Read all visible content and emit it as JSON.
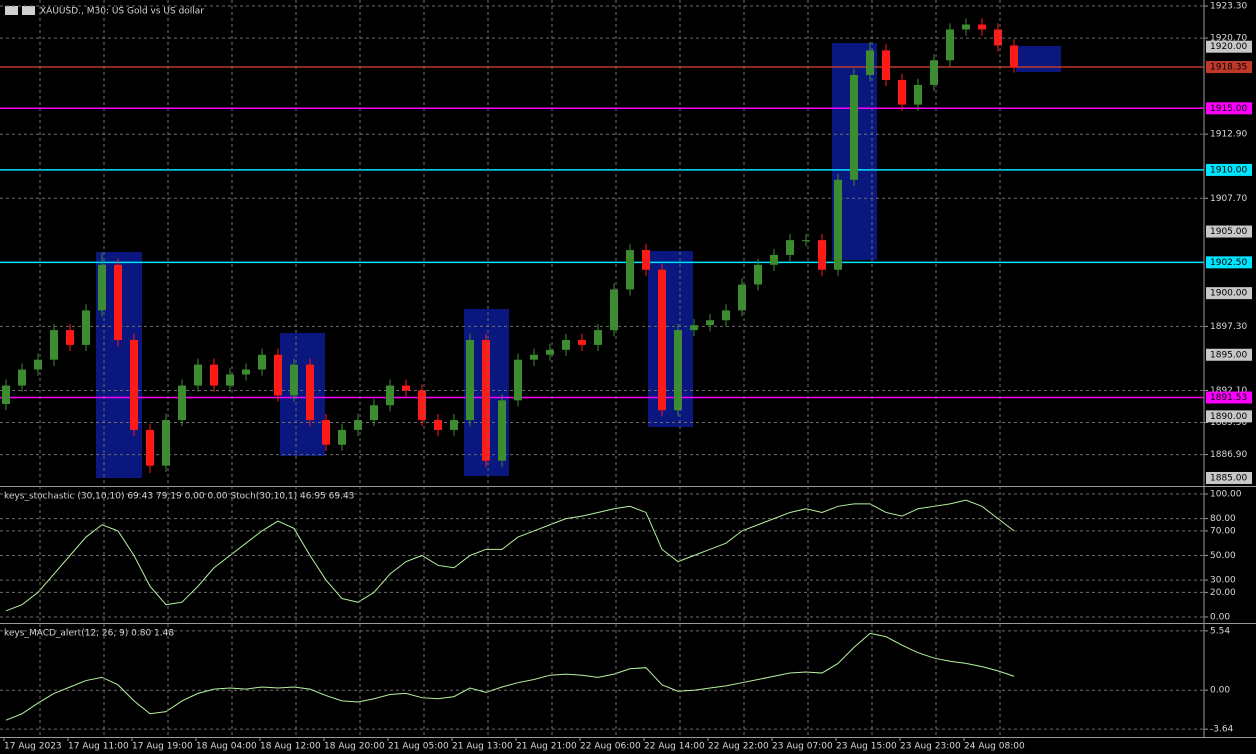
{
  "chart_data": [
    {
      "type": "candlestick",
      "title": "XAUUSD., M30:  US Gold vs US dollar",
      "categories": [
        "17 Aug 2023",
        null,
        null,
        null,
        "17 Aug 11:00",
        null,
        null,
        null,
        "17 Aug 19:00",
        null,
        null,
        null,
        "18 Aug 04:00",
        null,
        null,
        null,
        "18 Aug 12:00",
        null,
        null,
        null,
        "18 Aug 20:00",
        null,
        null,
        null,
        "21 Aug 05:00",
        null,
        null,
        null,
        "21 Aug 13:00",
        null,
        null,
        null,
        "21 Aug 21:00",
        null,
        null,
        null,
        "22 Aug 06:00",
        null,
        null,
        null,
        "22 Aug 14:00",
        null,
        null,
        null,
        "22 Aug 22:00",
        null,
        null,
        null,
        "23 Aug 07:00",
        null,
        null,
        null,
        "23 Aug 15:00",
        null,
        null,
        null,
        "23 Aug 23:00",
        null,
        null,
        null,
        "24 Aug 08:00",
        null,
        null,
        null
      ],
      "open": [
        1891.0,
        1892.5,
        1893.8,
        1894.6,
        1897.0,
        1895.8,
        1898.6,
        1902.3,
        1896.2,
        1888.9,
        1886.0,
        1889.7,
        1892.5,
        1894.2,
        1892.5,
        1893.4,
        1893.8,
        1895.0,
        1891.7,
        1894.2,
        1889.7,
        1887.7,
        1888.9,
        1889.7,
        1890.9,
        1892.5,
        1892.1,
        1889.7,
        1888.9,
        1889.7,
        1896.2,
        1886.4,
        1891.3,
        1894.6,
        1895.0,
        1895.4,
        1896.2,
        1895.8,
        1897.0,
        1900.3,
        1903.5,
        1901.9,
        1890.5,
        1897.0,
        1897.4,
        1897.8,
        1898.6,
        1900.7,
        1902.3,
        1903.1,
        1904.3,
        1904.3,
        1901.9,
        1909.2,
        1917.7,
        1919.7,
        1917.3,
        1915.3,
        1916.9,
        1918.9,
        1921.4,
        1921.8,
        1921.4,
        1920.1
      ],
      "high": [
        1893.0,
        1894.3,
        1895.1,
        1897.5,
        1897.5,
        1899.1,
        1903.3,
        1902.8,
        1896.7,
        1889.4,
        1890.2,
        1893.0,
        1894.7,
        1894.7,
        1893.9,
        1894.3,
        1895.5,
        1895.5,
        1894.7,
        1894.7,
        1890.2,
        1889.4,
        1890.2,
        1891.4,
        1893.0,
        1893.0,
        1892.6,
        1890.2,
        1890.2,
        1896.7,
        1896.7,
        1891.8,
        1895.1,
        1895.5,
        1895.9,
        1896.7,
        1896.7,
        1897.5,
        1900.8,
        1904.0,
        1904.0,
        1902.4,
        1897.5,
        1897.9,
        1898.3,
        1899.1,
        1901.2,
        1902.8,
        1903.6,
        1904.8,
        1904.8,
        1904.8,
        1909.7,
        1918.2,
        1920.4,
        1920.2,
        1917.8,
        1917.4,
        1919.4,
        1921.9,
        1922.3,
        1922.3,
        1921.9,
        1920.6
      ],
      "low": [
        1890.5,
        1892.0,
        1893.3,
        1894.1,
        1895.3,
        1895.3,
        1898.1,
        1895.7,
        1888.4,
        1885.4,
        1885.5,
        1889.2,
        1892.0,
        1892.0,
        1892.0,
        1892.9,
        1893.3,
        1891.2,
        1891.2,
        1889.2,
        1887.2,
        1887.2,
        1888.4,
        1889.2,
        1890.4,
        1891.6,
        1889.2,
        1888.4,
        1888.4,
        1889.2,
        1885.9,
        1885.9,
        1890.8,
        1894.1,
        1894.5,
        1894.9,
        1895.3,
        1895.3,
        1896.5,
        1899.8,
        1901.4,
        1890.0,
        1890.0,
        1896.5,
        1896.9,
        1897.3,
        1898.1,
        1900.2,
        1901.8,
        1902.6,
        1903.8,
        1901.4,
        1901.4,
        1908.7,
        1917.2,
        1916.8,
        1914.8,
        1914.8,
        1916.4,
        1918.4,
        1920.9,
        1920.9,
        1919.6,
        1917.9
      ],
      "close": [
        1892.5,
        1893.8,
        1894.6,
        1897.0,
        1895.8,
        1898.6,
        1902.3,
        1896.2,
        1888.9,
        1886.0,
        1889.7,
        1892.5,
        1894.2,
        1892.5,
        1893.4,
        1893.8,
        1895.0,
        1891.7,
        1894.2,
        1889.7,
        1887.7,
        1888.9,
        1889.7,
        1890.9,
        1892.5,
        1892.1,
        1889.7,
        1888.9,
        1889.7,
        1896.2,
        1886.4,
        1891.3,
        1894.6,
        1895.0,
        1895.4,
        1896.2,
        1895.8,
        1897.0,
        1900.3,
        1903.5,
        1901.9,
        1890.5,
        1897.0,
        1897.4,
        1897.8,
        1898.6,
        1900.7,
        1902.3,
        1903.1,
        1904.3,
        1904.3,
        1901.9,
        1909.2,
        1917.7,
        1919.7,
        1917.3,
        1915.3,
        1916.9,
        1918.9,
        1921.4,
        1921.8,
        1921.4,
        1920.1,
        1918.35
      ],
      "up_color": "#3c8d2f",
      "down_color": "#ff1a1a",
      "ylim": [
        1884.43,
        1923.79
      ],
      "yticks": [
        {
          "value": 1923.3,
          "label": "1923.30"
        },
        {
          "value": 1920.7,
          "label": "1920.70"
        },
        {
          "value": 1912.9,
          "label": "1912.90"
        },
        {
          "value": 1907.7,
          "label": "1907.70"
        },
        {
          "value": 1897.3,
          "label": "1897.30"
        },
        {
          "value": 1892.1,
          "label": "1892.10"
        },
        {
          "value": 1889.5,
          "label": "1889.50"
        },
        {
          "value": 1886.9,
          "label": "1886.90"
        }
      ],
      "levels": [
        {
          "value": 1918.35,
          "label": "1918.35",
          "color": "#c0392b"
        },
        {
          "value": 1915.0,
          "label": "1915.00",
          "color": "#ff00ff"
        },
        {
          "value": 1910.0,
          "label": "1910.00",
          "color": "#00e5ff"
        },
        {
          "value": 1902.5,
          "label": "1902.50",
          "color": "#00e5ff"
        },
        {
          "value": 1891.53,
          "label": "1891.53",
          "color": "#ff00ff"
        }
      ],
      "price_labels": [
        {
          "value": 1920.0,
          "label": "1920.00"
        },
        {
          "value": 1905.0,
          "label": "1905.00"
        },
        {
          "value": 1900.0,
          "label": "1900.00"
        },
        {
          "value": 1895.0,
          "label": "1895.00"
        },
        {
          "value": 1890.0,
          "label": "1890.00"
        },
        {
          "value": 1885.0,
          "label": "1885.00"
        }
      ],
      "grid": true
    },
    {
      "type": "line",
      "title": "keys_stochastic (30,10,10) 69.43 79.19 0.00 0.00 Stoch(30,10,1) 46.95 69.43",
      "values": [
        5,
        10,
        20,
        35,
        50,
        65,
        75,
        70,
        50,
        25,
        10,
        12,
        25,
        40,
        50,
        60,
        70,
        78,
        72,
        50,
        30,
        15,
        12,
        20,
        35,
        45,
        50,
        42,
        40,
        50,
        55,
        55,
        65,
        70,
        75,
        80,
        82,
        85,
        88,
        90,
        85,
        55,
        45,
        50,
        55,
        60,
        70,
        75,
        80,
        85,
        88,
        85,
        90,
        92,
        92,
        85,
        82,
        88,
        90,
        92,
        95,
        90,
        80,
        70
      ],
      "color": "#b6f2a0",
      "ylim": [
        -4.1,
        104.9
      ],
      "yticks": [
        {
          "value": 100,
          "label": "100.00"
        },
        {
          "value": 80,
          "label": "80.00"
        },
        {
          "value": 70,
          "label": "70.00"
        },
        {
          "value": 50,
          "label": "50.00"
        },
        {
          "value": 30,
          "label": "30.00"
        },
        {
          "value": 20,
          "label": "20.00"
        },
        {
          "value": 0,
          "label": "0.00"
        }
      ],
      "grid": true
    },
    {
      "type": "line",
      "title": "keys_MACD_alert(12, 26, 9) 0.80 1.48",
      "values": [
        -2.8,
        -2.2,
        -1.2,
        -0.3,
        0.3,
        0.9,
        1.2,
        0.5,
        -1.0,
        -2.2,
        -2.0,
        -1.0,
        -0.3,
        0.1,
        0.2,
        0.1,
        0.3,
        0.2,
        0.3,
        0.1,
        -0.5,
        -1.0,
        -1.1,
        -0.8,
        -0.4,
        -0.3,
        -0.7,
        -0.8,
        -0.6,
        0.2,
        -0.2,
        0.3,
        0.7,
        1.0,
        1.4,
        1.5,
        1.4,
        1.2,
        1.5,
        2.0,
        2.1,
        0.5,
        -0.1,
        0.0,
        0.2,
        0.4,
        0.7,
        1.0,
        1.3,
        1.6,
        1.7,
        1.6,
        2.5,
        4.0,
        5.3,
        5.0,
        4.2,
        3.5,
        3.0,
        2.7,
        2.5,
        2.2,
        1.8,
        1.3
      ],
      "color": "#b6f2a0",
      "ylim": [
        -4.37,
        6.18
      ],
      "yticks": [
        {
          "value": 5.54,
          "label": "5.54"
        },
        {
          "value": 0,
          "label": "0.00"
        },
        {
          "value": -3.64,
          "label": "-3.64"
        }
      ],
      "grid": true
    }
  ]
}
